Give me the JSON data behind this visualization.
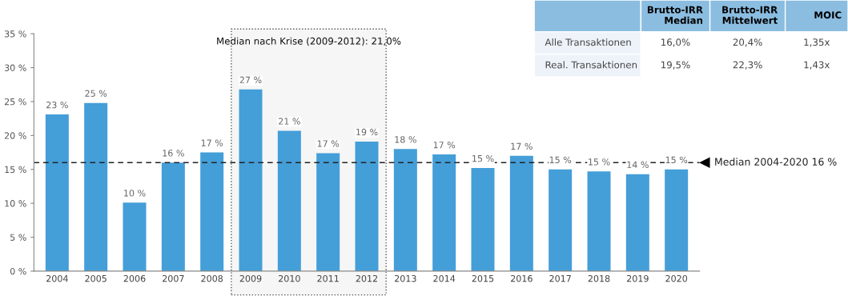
{
  "chart_data": {
    "type": "bar",
    "categories": [
      "2004",
      "2005",
      "2006",
      "2007",
      "2008",
      "2009",
      "2010",
      "2011",
      "2012",
      "2013",
      "2014",
      "2015",
      "2016",
      "2017",
      "2018",
      "2019",
      "2020"
    ],
    "values": [
      23.1,
      24.8,
      10.1,
      16.0,
      17.5,
      26.8,
      20.7,
      17.4,
      19.1,
      18.0,
      17.2,
      15.2,
      17.0,
      15.0,
      14.7,
      14.3,
      15.0
    ],
    "value_labels": [
      "23 %",
      "25 %",
      "10 %",
      "16 %",
      "17 %",
      "27 %",
      "21 %",
      "17 %",
      "19 %",
      "18 %",
      "17 %",
      "15 %",
      "17 %",
      "15 %",
      "15 %",
      "14 %",
      "15 %"
    ],
    "color": "#449ed8",
    "ylim": [
      0,
      35
    ],
    "yticks": [
      {
        "value": 0,
        "label": "0 %"
      },
      {
        "value": 5,
        "label": "5 %"
      },
      {
        "value": 10,
        "label": "10 %"
      },
      {
        "value": 15,
        "label": "15 %"
      },
      {
        "value": 20,
        "label": "20 %"
      },
      {
        "value": 25,
        "label": "25 %"
      },
      {
        "value": 30,
        "label": "30 %"
      },
      {
        "value": 35,
        "label": "35 %"
      }
    ],
    "ref_lines": [
      {
        "axis": "y",
        "value": 16,
        "label": "Median 2004-2020 16 %",
        "color": "#222222",
        "line_style": "dashed"
      }
    ],
    "bands": [
      {
        "axis": "x",
        "from": "2009",
        "to": "2012",
        "label": "Median nach Krise (2009-2012): 21,0%",
        "color": "#555555"
      }
    ],
    "annotations": [
      "Brutto-IRR\nMedian",
      "Brutto-IRR\nMittelwert",
      "MOIC",
      "Alle Transaktionen",
      "16,0%",
      "20,4%",
      "1,35x",
      "Real. Transaktionen",
      "19,5%",
      "22,3%",
      "1,43x"
    ],
    "grid": false
  }
}
